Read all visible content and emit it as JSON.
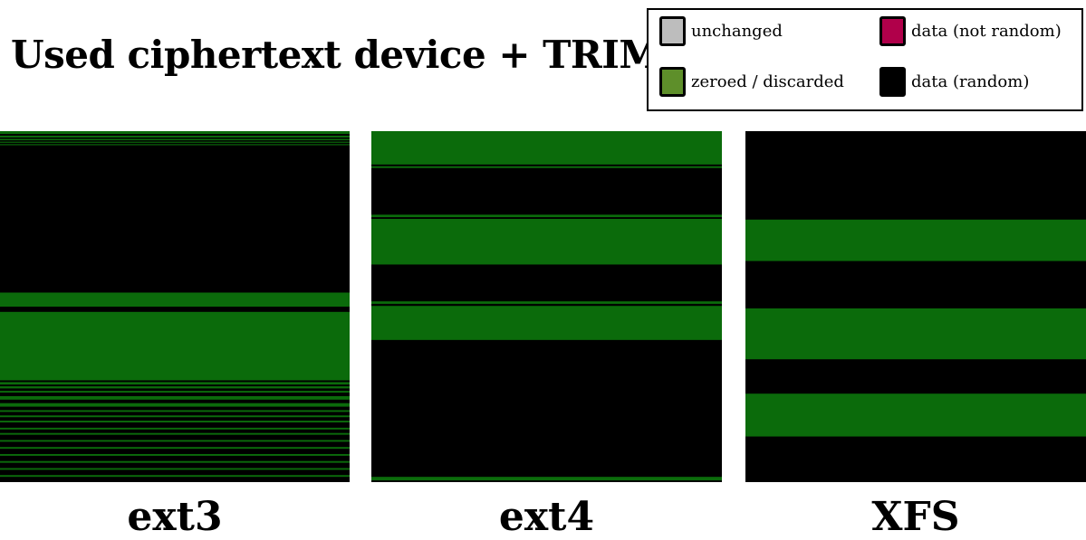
{
  "chart_data": {
    "type": "heatmap",
    "title": "Used ciphertext device + TRIM",
    "legend": {
      "placement": "top-right",
      "items": [
        {
          "label": "unchanged",
          "color": "#bdbdbd"
        },
        {
          "label": "data (not random)",
          "color": "#b0004a"
        },
        {
          "label": "zeroed / discarded",
          "color": "#5e8f2a"
        },
        {
          "label": "data (random)",
          "color": "#000000"
        }
      ]
    },
    "panels": [
      {
        "label": "ext3",
        "bands": [
          {
            "start": 0.0,
            "end": 0.008,
            "type": "zeroed / discarded"
          },
          {
            "start": 0.013,
            "end": 0.018,
            "type": "zeroed / discarded"
          },
          {
            "start": 0.022,
            "end": 0.026,
            "type": "zeroed / discarded"
          },
          {
            "start": 0.03,
            "end": 0.033,
            "type": "zeroed / discarded"
          },
          {
            "start": 0.037,
            "end": 0.04,
            "type": "zeroed / discarded"
          },
          {
            "start": 0.46,
            "end": 0.5,
            "type": "zeroed / discarded"
          },
          {
            "start": 0.515,
            "end": 0.71,
            "type": "zeroed / discarded"
          },
          {
            "start": 0.715,
            "end": 0.722,
            "type": "zeroed / discarded"
          },
          {
            "start": 0.727,
            "end": 0.733,
            "type": "zeroed / discarded"
          },
          {
            "start": 0.74,
            "end": 0.745,
            "type": "zeroed / discarded"
          },
          {
            "start": 0.755,
            "end": 0.765,
            "type": "zeroed / discarded"
          },
          {
            "start": 0.775,
            "end": 0.785,
            "type": "zeroed / discarded"
          },
          {
            "start": 0.795,
            "end": 0.8,
            "type": "zeroed / discarded"
          },
          {
            "start": 0.81,
            "end": 0.815,
            "type": "zeroed / discarded"
          },
          {
            "start": 0.825,
            "end": 0.83,
            "type": "zeroed / discarded"
          },
          {
            "start": 0.845,
            "end": 0.85,
            "type": "zeroed / discarded"
          },
          {
            "start": 0.86,
            "end": 0.865,
            "type": "zeroed / discarded"
          },
          {
            "start": 0.88,
            "end": 0.885,
            "type": "zeroed / discarded"
          },
          {
            "start": 0.9,
            "end": 0.905,
            "type": "zeroed / discarded"
          },
          {
            "start": 0.92,
            "end": 0.925,
            "type": "zeroed / discarded"
          },
          {
            "start": 0.94,
            "end": 0.945,
            "type": "zeroed / discarded"
          },
          {
            "start": 0.96,
            "end": 0.965,
            "type": "zeroed / discarded"
          },
          {
            "start": 0.98,
            "end": 0.985,
            "type": "zeroed / discarded"
          }
        ]
      },
      {
        "label": "ext4",
        "bands": [
          {
            "start": 0.0,
            "end": 0.095,
            "type": "zeroed / discarded"
          },
          {
            "start": 0.1,
            "end": 0.105,
            "type": "zeroed / discarded"
          },
          {
            "start": 0.238,
            "end": 0.245,
            "type": "zeroed / discarded"
          },
          {
            "start": 0.25,
            "end": 0.38,
            "type": "zeroed / discarded"
          },
          {
            "start": 0.485,
            "end": 0.492,
            "type": "zeroed / discarded"
          },
          {
            "start": 0.498,
            "end": 0.595,
            "type": "zeroed / discarded"
          },
          {
            "start": 0.985,
            "end": 0.995,
            "type": "zeroed / discarded"
          }
        ]
      },
      {
        "label": "XFS",
        "bands": [
          {
            "start": 0.252,
            "end": 0.37,
            "type": "zeroed / discarded"
          },
          {
            "start": 0.505,
            "end": 0.65,
            "type": "zeroed / discarded"
          },
          {
            "start": 0.748,
            "end": 0.87,
            "type": "zeroed / discarded"
          }
        ]
      }
    ]
  }
}
